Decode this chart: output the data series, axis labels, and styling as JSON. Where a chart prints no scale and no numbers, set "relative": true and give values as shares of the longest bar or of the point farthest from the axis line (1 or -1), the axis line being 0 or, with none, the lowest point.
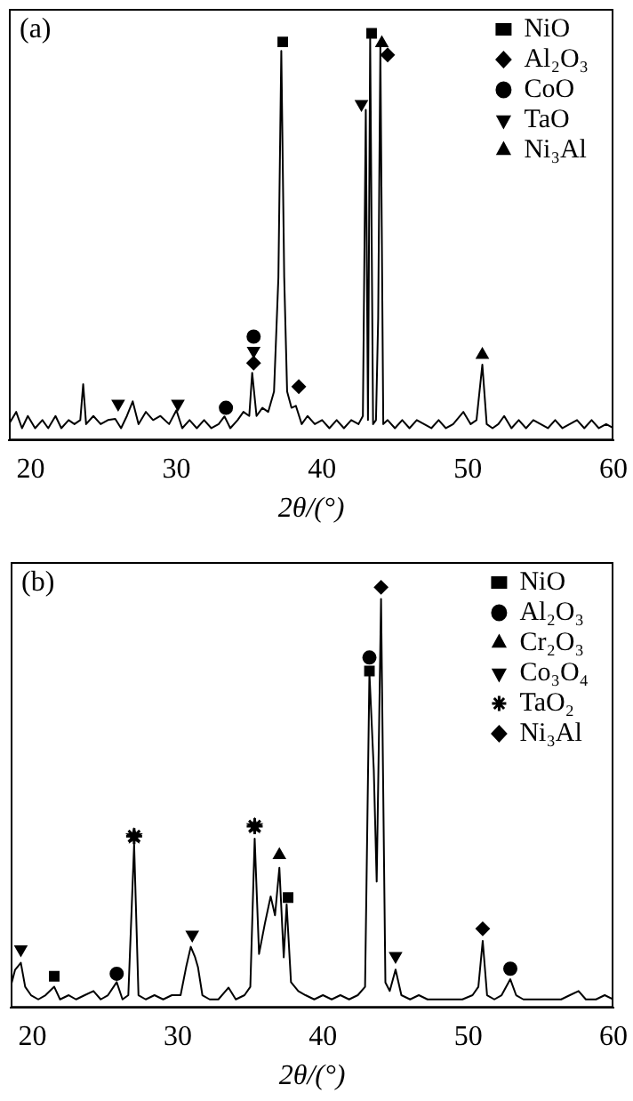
{
  "chart_data": [
    {
      "type": "line",
      "relative": true,
      "annotations": [
        "(a)"
      ],
      "xlabel": "2θ/(°)",
      "xlim": [
        18.5,
        60
      ],
      "xticks": [
        20,
        30,
        40,
        50,
        60
      ],
      "legend": "top right",
      "grid": false,
      "series": [
        {
          "type": "line",
          "color": "#000000",
          "marker": "none",
          "x": [
            18.5,
            19,
            19.4,
            19.8,
            20.3,
            20.8,
            21.2,
            21.7,
            22.1,
            22.6,
            23.0,
            23.4,
            23.6,
            23.8,
            24.3,
            24.8,
            25.3,
            25.8,
            26.2,
            26.6,
            27.0,
            27.4,
            27.9,
            28.4,
            28.9,
            29.5,
            30.0,
            30.4,
            30.9,
            31.4,
            31.9,
            32.4,
            32.9,
            33.3,
            33.7,
            34.2,
            34.6,
            35.0,
            35.2,
            35.5,
            35.9,
            36.3,
            36.7,
            37.0,
            37.2,
            37.4,
            37.6,
            37.9,
            38.2,
            38.6,
            39.0,
            39.5,
            40.0,
            40.5,
            41.0,
            41.5,
            42.0,
            42.5,
            42.8,
            43.0,
            43.15,
            43.3,
            43.5,
            43.7,
            43.85,
            44.0,
            44.2,
            44.5,
            45.0,
            45.5,
            46.0,
            46.5,
            47.0,
            47.5,
            48.0,
            48.5,
            49.0,
            49.7,
            50.2,
            50.6,
            51.0,
            51.3,
            51.7,
            52.1,
            52.5,
            53.0,
            53.5,
            54.0,
            54.5,
            55.0,
            55.5,
            56.0,
            56.5,
            57.0,
            57.5,
            58.0,
            58.5,
            59.0,
            59.5,
            60.0
          ],
          "values": [
            0.04,
            0.07,
            0.03,
            0.06,
            0.03,
            0.05,
            0.03,
            0.06,
            0.03,
            0.05,
            0.04,
            0.05,
            0.138,
            0.04,
            0.06,
            0.04,
            0.05,
            0.053,
            0.03,
            0.06,
            0.096,
            0.04,
            0.07,
            0.05,
            0.06,
            0.04,
            0.074,
            0.03,
            0.05,
            0.03,
            0.05,
            0.03,
            0.04,
            0.059,
            0.03,
            0.05,
            0.07,
            0.06,
            0.166,
            0.06,
            0.08,
            0.07,
            0.12,
            0.4,
            0.957,
            0.4,
            0.12,
            0.08,
            0.085,
            0.04,
            0.06,
            0.04,
            0.05,
            0.03,
            0.05,
            0.03,
            0.05,
            0.04,
            0.06,
            0.812,
            0.05,
            0.986,
            0.04,
            0.05,
            0.3,
            0.968,
            0.04,
            0.05,
            0.03,
            0.05,
            0.03,
            0.05,
            0.04,
            0.03,
            0.05,
            0.03,
            0.04,
            0.07,
            0.04,
            0.05,
            0.186,
            0.04,
            0.03,
            0.04,
            0.06,
            0.03,
            0.05,
            0.03,
            0.05,
            0.04,
            0.03,
            0.05,
            0.03,
            0.04,
            0.05,
            0.03,
            0.05,
            0.03,
            0.04,
            0.03
          ]
        },
        {
          "type": "scatter",
          "name": "NiO",
          "marker": "square",
          "color": "#000000",
          "x": [
            37.3,
            43.4
          ],
          "values": [
            0.979,
            1
          ]
        },
        {
          "type": "scatter",
          "name": "Al₂O₃",
          "marker": "diamond",
          "color": "#000000",
          "x": [
            35.3,
            38.4,
            44.5
          ],
          "values": [
            0.19,
            0.132,
            0.947
          ]
        },
        {
          "type": "scatter",
          "name": "CoO",
          "marker": "circle",
          "color": "#000000",
          "x": [
            33.4,
            35.3
          ],
          "values": [
            0.08,
            0.255
          ]
        },
        {
          "type": "scatter",
          "name": "TaO",
          "marker": "triangle-down",
          "color": "#000000",
          "x": [
            26.0,
            30.1,
            35.3,
            42.7
          ],
          "values": [
            0.09,
            0.09,
            0.22,
            0.826
          ]
        },
        {
          "type": "scatter",
          "name": "Ni₃Al",
          "marker": "triangle",
          "color": "#000000",
          "x": [
            44.1,
            51.0
          ],
          "values": [
            0.976,
            0.21
          ]
        }
      ]
    },
    {
      "type": "line",
      "relative": true,
      "annotations": [
        "(b)"
      ],
      "xlabel": "2θ/(°)",
      "xlim": [
        18.5,
        60
      ],
      "xticks": [
        20,
        30,
        40,
        50,
        60
      ],
      "legend": "top right",
      "grid": false,
      "series": [
        {
          "type": "line",
          "color": "#000000",
          "marker": "none",
          "x": [
            18.5,
            18.8,
            19.2,
            19.5,
            19.9,
            20.4,
            20.9,
            21.5,
            21.9,
            22.5,
            23.0,
            23.6,
            24.2,
            24.7,
            25.2,
            25.8,
            26.2,
            26.6,
            27.0,
            27.3,
            27.8,
            28.4,
            29.0,
            29.6,
            30.2,
            30.6,
            30.9,
            31.2,
            31.4,
            31.7,
            32.2,
            32.8,
            33.5,
            34.0,
            34.6,
            35.0,
            35.3,
            35.6,
            36.0,
            36.4,
            36.7,
            37.0,
            37.3,
            37.5,
            37.8,
            38.3,
            38.8,
            39.4,
            40.0,
            40.6,
            41.2,
            41.8,
            42.4,
            42.9,
            43.2,
            43.5,
            43.7,
            44.0,
            44.3,
            44.6,
            45.0,
            45.4,
            46.0,
            46.6,
            47.2,
            47.8,
            48.4,
            49.0,
            49.6,
            50.3,
            50.7,
            51.0,
            51.3,
            51.8,
            52.3,
            52.9,
            53.3,
            53.8,
            54.5,
            55.2,
            55.8,
            56.4,
            57.0,
            57.6,
            58.1,
            58.8,
            59.4,
            60.0
          ],
          "values": [
            0.05,
            0.09,
            0.107,
            0.05,
            0.03,
            0.02,
            0.03,
            0.05,
            0.02,
            0.03,
            0.02,
            0.03,
            0.04,
            0.02,
            0.03,
            0.061,
            0.02,
            0.03,
            0.388,
            0.03,
            0.02,
            0.03,
            0.02,
            0.03,
            0.03,
            0.1,
            0.145,
            0.12,
            0.096,
            0.03,
            0.02,
            0.02,
            0.048,
            0.02,
            0.03,
            0.05,
            0.402,
            0.128,
            0.2,
            0.265,
            0.22,
            0.333,
            0.12,
            0.246,
            0.061,
            0.04,
            0.03,
            0.02,
            0.03,
            0.02,
            0.03,
            0.02,
            0.03,
            0.05,
            0.796,
            0.566,
            0.3,
            0.972,
            0.06,
            0.04,
            0.091,
            0.03,
            0.02,
            0.03,
            0.02,
            0.02,
            0.02,
            0.02,
            0.02,
            0.03,
            0.05,
            0.159,
            0.03,
            0.02,
            0.03,
            0.068,
            0.03,
            0.02,
            0.02,
            0.02,
            0.02,
            0.02,
            0.03,
            0.04,
            0.02,
            0.02,
            0.03,
            0.02
          ]
        },
        {
          "type": "scatter",
          "name": "NiO",
          "marker": "square",
          "color": "#000000",
          "x": [
            21.5,
            37.6,
            43.2
          ],
          "values": [
            0.075,
            0.262,
            0.801
          ]
        },
        {
          "type": "scatter",
          "name": "Al₂O₃",
          "marker": "circle",
          "color": "#000000",
          "x": [
            25.8,
            43.2,
            52.9
          ],
          "values": [
            0.081,
            0.833,
            0.093
          ]
        },
        {
          "type": "scatter",
          "name": "Cr₂O₃",
          "marker": "triangle",
          "color": "#000000",
          "x": [
            37.0
          ],
          "values": [
            0.363
          ]
        },
        {
          "type": "scatter",
          "name": "Co₃O₄",
          "marker": "triangle-down",
          "color": "#000000",
          "x": [
            19.2,
            31.0,
            45.0
          ],
          "values": [
            0.139,
            0.174,
            0.123
          ]
        },
        {
          "type": "scatter",
          "name": "TaO₂",
          "marker": "star",
          "color": "#000000",
          "x": [
            27.0,
            35.3
          ],
          "values": [
            0.408,
            0.432
          ]
        },
        {
          "type": "scatter",
          "name": "Ni₃Al",
          "marker": "diamond",
          "color": "#000000",
          "x": [
            44.0,
            51.0
          ],
          "values": [
            1,
            0.188
          ]
        }
      ]
    }
  ]
}
